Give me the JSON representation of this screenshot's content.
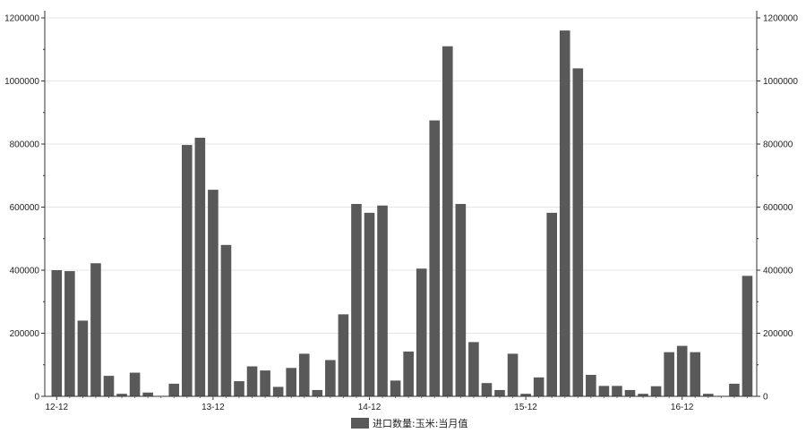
{
  "chart_data": {
    "type": "bar",
    "title": "",
    "xlabel": "",
    "ylabel": "",
    "legend_position": "bottom-center",
    "grid": true,
    "series_color": "#595959",
    "ylim": [
      0,
      1200000
    ],
    "y_ticks": [
      0,
      200000,
      400000,
      600000,
      800000,
      1000000,
      1200000
    ],
    "y_tick_labels": [
      "0",
      "200000",
      "400000",
      "600000",
      "800000",
      "1000000",
      "1200000"
    ],
    "x_tick_labels": [
      {
        "label": "12-12",
        "index": 0
      },
      {
        "label": "13-12",
        "index": 12
      },
      {
        "label": "14-12",
        "index": 24
      },
      {
        "label": "15-12",
        "index": 36
      },
      {
        "label": "16-12",
        "index": 48
      }
    ],
    "series": [
      {
        "name": "进口数量:玉米:当月值",
        "values": [
          400000,
          397000,
          240000,
          422000,
          65000,
          8000,
          75000,
          12000,
          0,
          40000,
          797000,
          820000,
          655000,
          480000,
          48000,
          95000,
          82000,
          30000,
          90000,
          135000,
          20000,
          115000,
          260000,
          610000,
          582000,
          605000,
          50000,
          142000,
          405000,
          875000,
          1110000,
          610000,
          172000,
          42000,
          20000,
          135000,
          8000,
          60000,
          582000,
          1160000,
          1040000,
          68000,
          33000,
          33000,
          20000,
          8000,
          32000,
          140000,
          160000,
          140000,
          8000,
          0,
          40000,
          382000
        ]
      }
    ]
  }
}
